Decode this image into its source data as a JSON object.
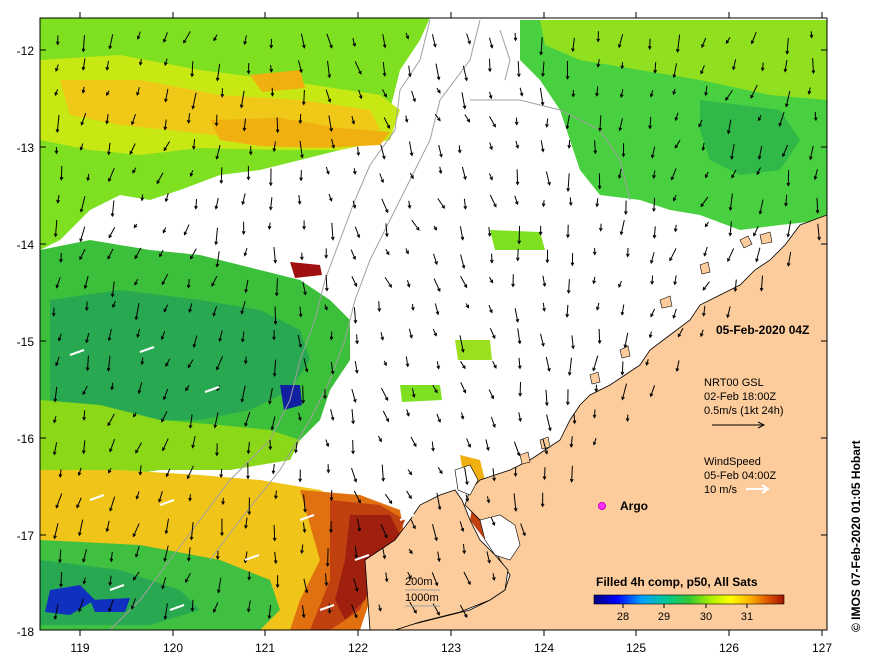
{
  "map": {
    "lon_ticks": [
      "119",
      "120",
      "121",
      "122",
      "123",
      "124",
      "125",
      "126",
      "127"
    ],
    "lat_ticks": [
      "-12",
      "-13",
      "-14",
      "-15",
      "-16",
      "-17",
      "-18"
    ],
    "date_label": "05-Feb-2020 04Z",
    "currents": {
      "title": "NRT00 GSL",
      "time": "02-Feb 18:00Z",
      "scale": "0.5m/s (1kt 24h)"
    },
    "wind": {
      "title": "WindSpeed",
      "time": "05-Feb 04:00Z",
      "scale": "10 m/s"
    },
    "argo_label": "Argo",
    "isobaths": [
      "200m",
      "1000m"
    ],
    "colorbar": {
      "title": "Filled 4h comp, p50, All Sats",
      "ticks": [
        "28",
        "29",
        "30",
        "31"
      ]
    },
    "credit": "© IMOS 07-Feb-2020 01:05 Hobart",
    "colors": {
      "land": "#fccc9c",
      "no_data": "#ffffff",
      "arrow": "#000000",
      "argo": "#ff33ff"
    }
  }
}
